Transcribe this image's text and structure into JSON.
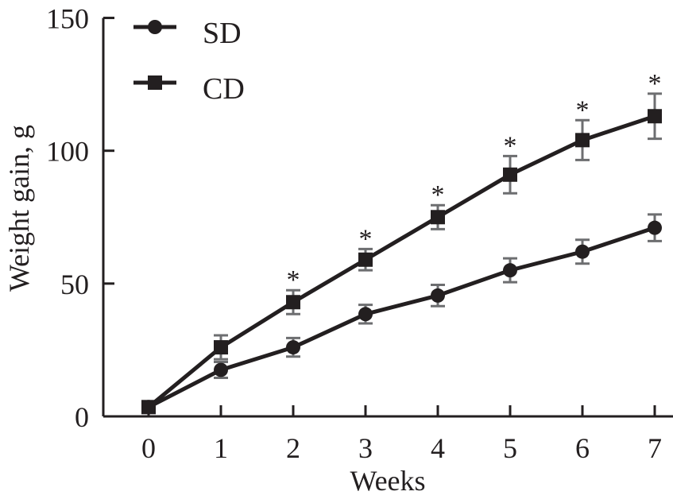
{
  "chart_data": {
    "type": "line",
    "title": "",
    "xlabel": "Weeks",
    "ylabel": "Weight gain, g",
    "x": [
      0,
      1,
      2,
      3,
      4,
      5,
      6,
      7
    ],
    "xticks": [
      "0",
      "1",
      "2",
      "3",
      "4",
      "5",
      "6",
      "7"
    ],
    "yticks": [
      "0",
      "50",
      "100",
      "150"
    ],
    "ytick_values": [
      0,
      50,
      100,
      150
    ],
    "ylim": [
      0,
      150
    ],
    "xlim": [
      -0.6,
      7.0
    ],
    "grid": false,
    "legend_position": "top-left",
    "series": [
      {
        "name": "SD",
        "marker": "circle",
        "values": [
          3.5,
          17.5,
          26,
          38.5,
          45.5,
          55,
          62,
          71
        ],
        "errors": [
          1,
          3,
          3.5,
          3.5,
          4,
          4.5,
          4.5,
          5
        ]
      },
      {
        "name": "CD",
        "marker": "square",
        "values": [
          3.5,
          26,
          43,
          59,
          75,
          91,
          104,
          113
        ],
        "errors": [
          1,
          4.5,
          4.5,
          4,
          4.5,
          7,
          7.5,
          8.5
        ]
      }
    ],
    "annotations": [
      {
        "x": 2,
        "text": "*"
      },
      {
        "x": 3,
        "text": "*"
      },
      {
        "x": 4,
        "text": "*"
      },
      {
        "x": 5,
        "text": "*"
      },
      {
        "x": 6,
        "text": "*"
      },
      {
        "x": 7,
        "text": "*"
      }
    ],
    "colors": {
      "line": "#231f20",
      "errorbar": "#6d6e70"
    }
  }
}
